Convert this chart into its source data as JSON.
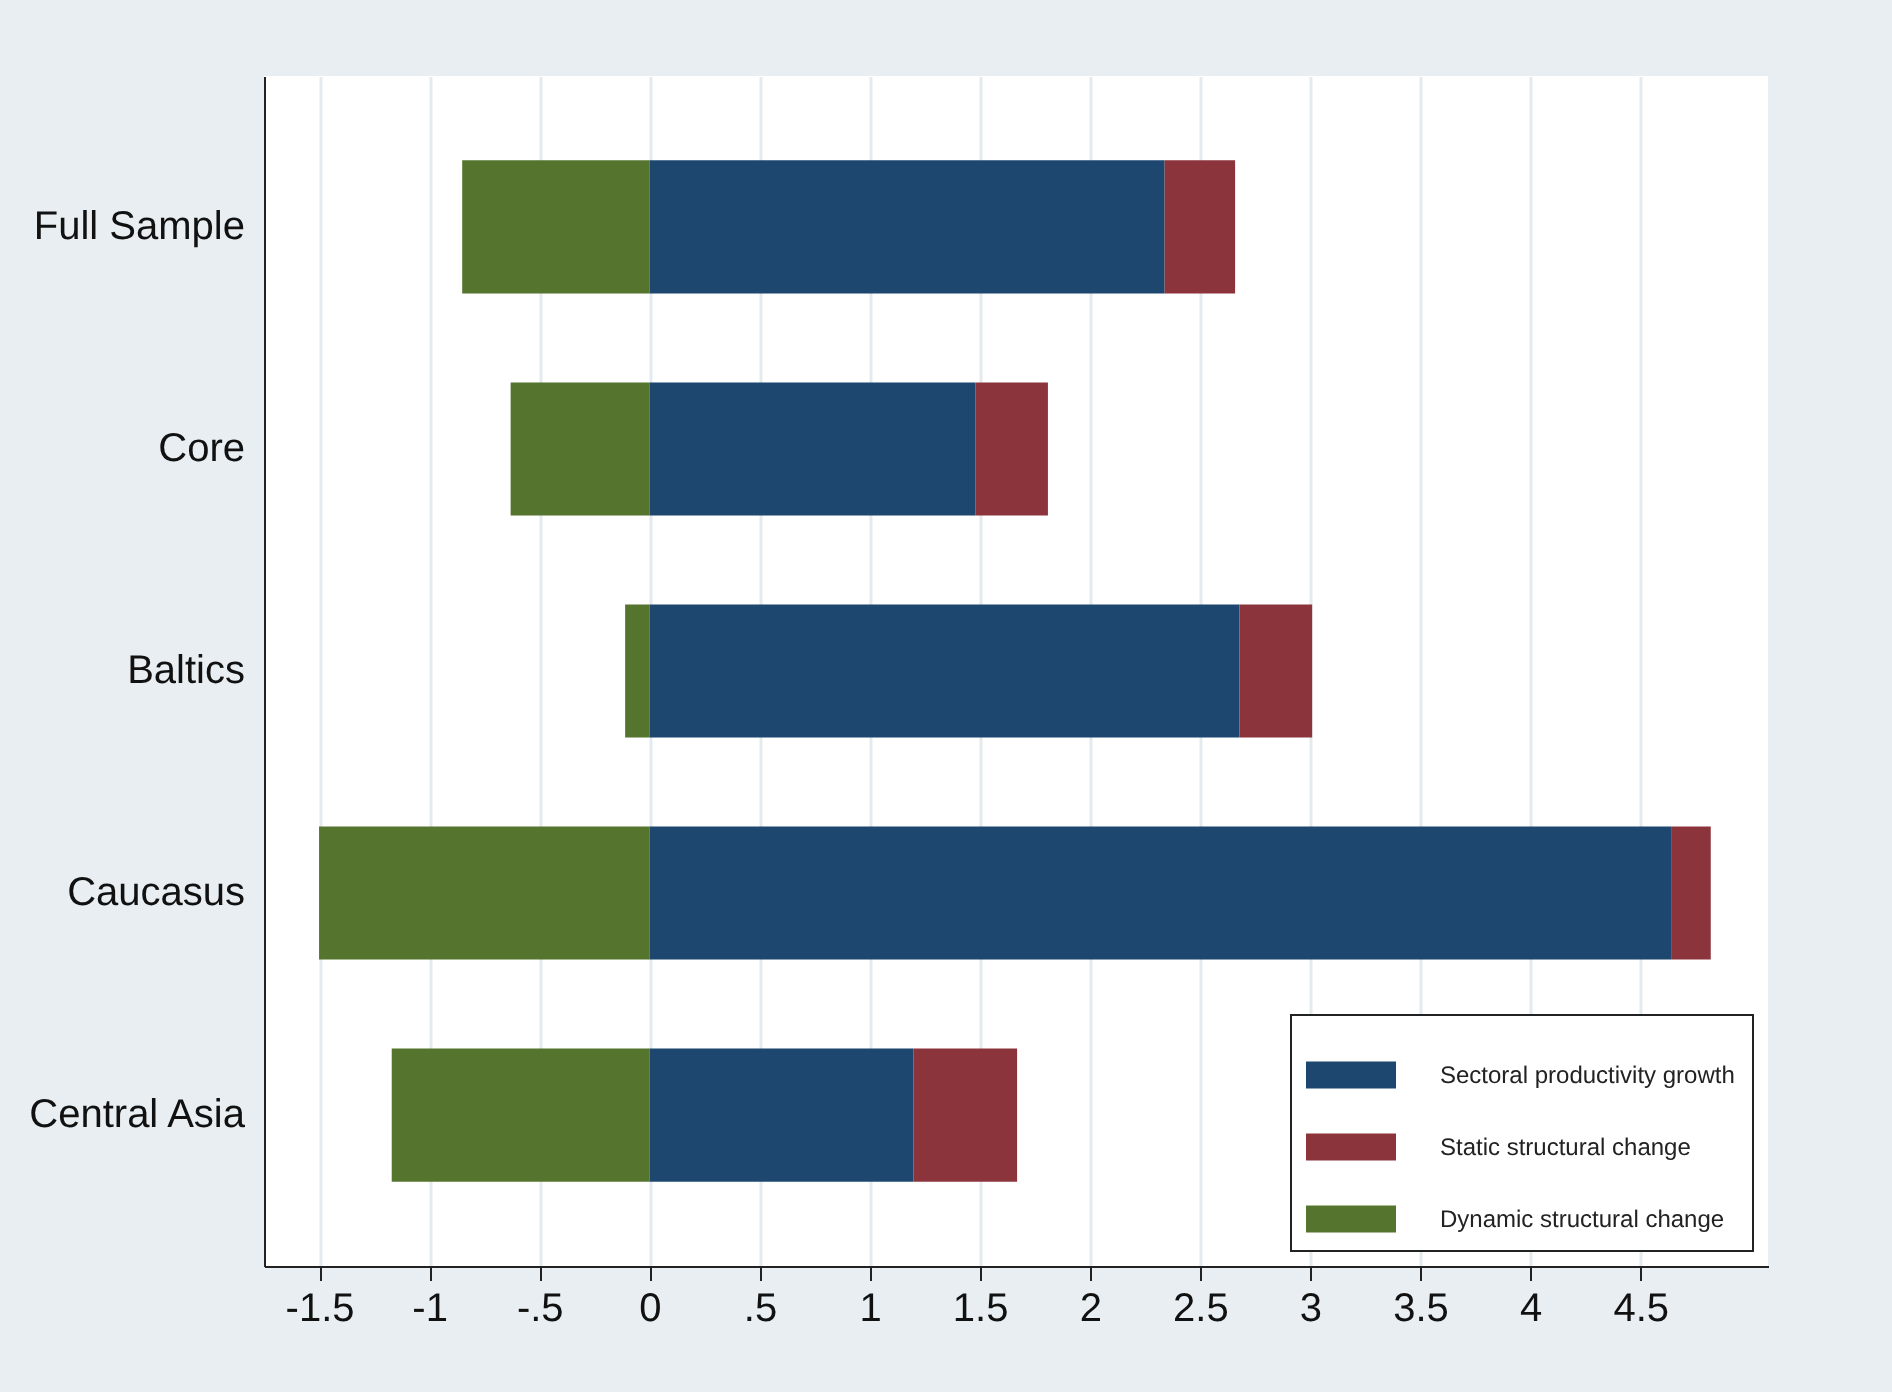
{
  "chart_data": {
    "type": "bar",
    "orientation": "horizontal",
    "stacked": true,
    "categories": [
      "Full Sample",
      "Core",
      "Baltics",
      "Caucasus",
      "Central Asia"
    ],
    "series": [
      {
        "name": "Sectoral productivity growth",
        "color": "#1d476e",
        "values": [
          2.34,
          1.48,
          2.68,
          4.64,
          1.2
        ]
      },
      {
        "name": "Static structural change",
        "color": "#8c343c",
        "values": [
          0.32,
          0.33,
          0.33,
          0.18,
          0.47
        ]
      },
      {
        "name": "Dynamic structural change",
        "color": "#55752f",
        "values": [
          -0.85,
          -0.63,
          -0.11,
          -1.5,
          -1.17
        ]
      }
    ],
    "xlim": [
      -1.75,
      5.08
    ],
    "xticks": [
      {
        "value": -1.5,
        "label": "-1.5"
      },
      -1,
      {
        "value": -0.5,
        "label": "-.5"
      },
      0,
      {
        "value": 0.5,
        "label": ".5"
      },
      1,
      1.5,
      2,
      2.5,
      3,
      3.5,
      4,
      4.5
    ],
    "grid": "x",
    "legend": "bottom right"
  }
}
